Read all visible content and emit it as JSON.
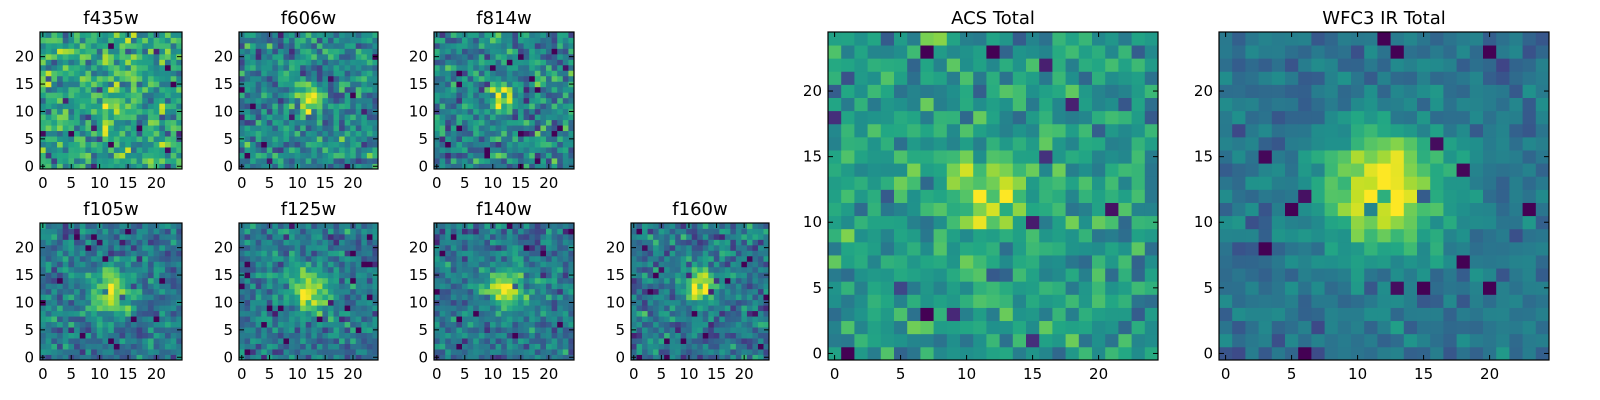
{
  "chart_data": [
    {
      "type": "heatmap",
      "title": "f435w",
      "colormap": "viridis",
      "size": 25,
      "xticks": [
        0,
        5,
        10,
        15,
        20
      ],
      "yticks": [
        0,
        5,
        10,
        15,
        20
      ],
      "xlim": [
        0,
        24
      ],
      "ylim": [
        0,
        24
      ],
      "source": {
        "x": 12,
        "y": 13,
        "amplitude": 0.1,
        "sigma": 3.0
      },
      "noise": 0.3,
      "base": 0.6,
      "seed": 3
    },
    {
      "type": "heatmap",
      "title": "f606w",
      "colormap": "viridis",
      "size": 25,
      "xticks": [
        0,
        5,
        10,
        15,
        20
      ],
      "yticks": [
        0,
        5,
        10,
        15,
        20
      ],
      "xlim": [
        0,
        24
      ],
      "ylim": [
        0,
        24
      ],
      "source": {
        "x": 12,
        "y": 12.5,
        "amplitude": 0.55,
        "sigma": 1.6
      },
      "noise": 0.28,
      "base": 0.45,
      "seed": 11
    },
    {
      "type": "heatmap",
      "title": "f814w",
      "colormap": "viridis",
      "size": 25,
      "xticks": [
        0,
        5,
        10,
        15,
        20
      ],
      "yticks": [
        0,
        5,
        10,
        15,
        20
      ],
      "xlim": [
        0,
        24
      ],
      "ylim": [
        0,
        24
      ],
      "source": {
        "x": 12,
        "y": 12.5,
        "amplitude": 0.55,
        "sigma": 1.6
      },
      "noise": 0.28,
      "base": 0.45,
      "seed": 23
    },
    {
      "type": "heatmap",
      "title": "f105w",
      "colormap": "viridis",
      "size": 25,
      "xticks": [
        0,
        5,
        10,
        15,
        20
      ],
      "yticks": [
        0,
        5,
        10,
        15,
        20
      ],
      "xlim": [
        0,
        24
      ],
      "ylim": [
        0,
        24
      ],
      "source": {
        "x": 12,
        "y": 12,
        "amplitude": 0.5,
        "sigma": 2.8
      },
      "noise": 0.22,
      "base": 0.4,
      "seed": 37
    },
    {
      "type": "heatmap",
      "title": "f125w",
      "colormap": "viridis",
      "size": 25,
      "xticks": [
        0,
        5,
        10,
        15,
        20
      ],
      "yticks": [
        0,
        5,
        10,
        15,
        20
      ],
      "xlim": [
        0,
        24
      ],
      "ylim": [
        0,
        24
      ],
      "source": {
        "x": 12,
        "y": 12,
        "amplitude": 0.5,
        "sigma": 2.8
      },
      "noise": 0.22,
      "base": 0.4,
      "seed": 41
    },
    {
      "type": "heatmap",
      "title": "f140w",
      "colormap": "viridis",
      "size": 25,
      "xticks": [
        0,
        5,
        10,
        15,
        20
      ],
      "yticks": [
        0,
        5,
        10,
        15,
        20
      ],
      "xlim": [
        0,
        24
      ],
      "ylim": [
        0,
        24
      ],
      "source": {
        "x": 12,
        "y": 12.5,
        "amplitude": 0.5,
        "sigma": 2.6
      },
      "noise": 0.22,
      "base": 0.4,
      "seed": 53
    },
    {
      "type": "heatmap",
      "title": "f160w",
      "colormap": "viridis",
      "size": 25,
      "xticks": [
        0,
        5,
        10,
        15,
        20
      ],
      "yticks": [
        0,
        5,
        10,
        15,
        20
      ],
      "xlim": [
        0,
        24
      ],
      "ylim": [
        0,
        24
      ],
      "source": {
        "x": 12,
        "y": 13,
        "amplitude": 0.55,
        "sigma": 2.3
      },
      "noise": 0.25,
      "base": 0.4,
      "seed": 67
    },
    {
      "type": "heatmap",
      "title": "ACS Total",
      "colormap": "viridis",
      "size": 25,
      "xticks": [
        0,
        5,
        10,
        15,
        20
      ],
      "yticks": [
        0,
        5,
        10,
        15,
        20
      ],
      "xlim": [
        0,
        24
      ],
      "ylim": [
        0,
        24
      ],
      "source": {
        "x": 12,
        "y": 12.5,
        "amplitude": 0.35,
        "sigma": 2.0
      },
      "noise": 0.22,
      "base": 0.55,
      "seed": 79
    },
    {
      "type": "heatmap",
      "title": "WFC3 IR Total",
      "colormap": "viridis",
      "size": 25,
      "xticks": [
        0,
        5,
        10,
        15,
        20
      ],
      "yticks": [
        0,
        5,
        10,
        15,
        20
      ],
      "xlim": [
        0,
        24
      ],
      "ylim": [
        0,
        24
      ],
      "source": {
        "x": 12,
        "y": 12.5,
        "amplitude": 0.62,
        "sigma": 3.3
      },
      "noise": 0.13,
      "base": 0.38,
      "seed": 97
    }
  ]
}
